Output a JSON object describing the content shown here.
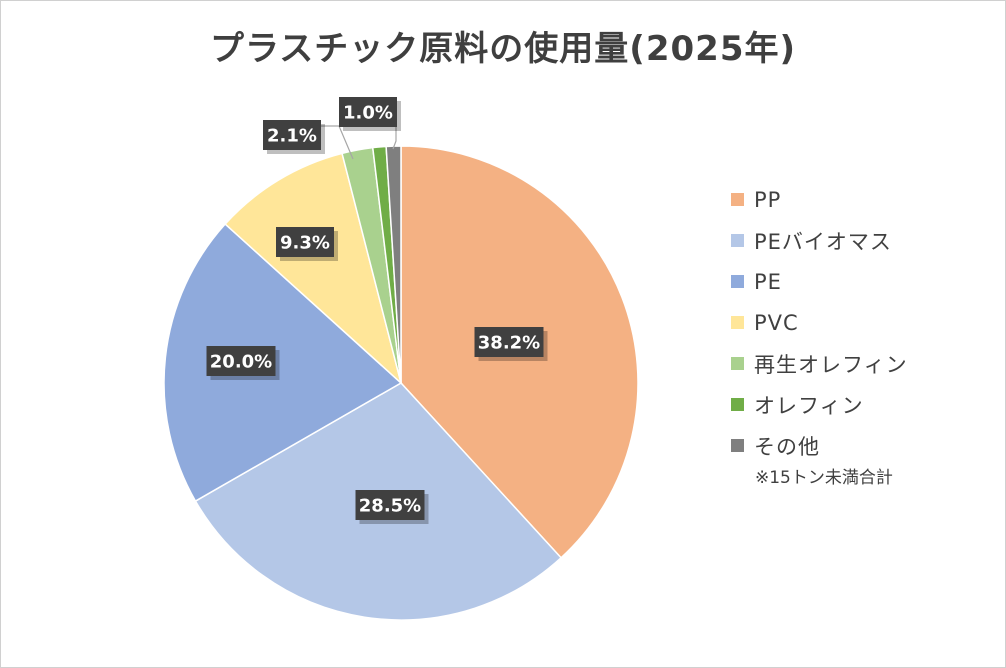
{
  "chart_data": {
    "type": "pie",
    "title": "プラスチック原料の使用量(2025年)",
    "note": "※15トン未満合計",
    "legend_position": "right",
    "slices": [
      {
        "name": "PP",
        "value": 38.2,
        "label": "38.2%",
        "color": "#F4B183"
      },
      {
        "name": "PEバイオマス",
        "value": 28.5,
        "label": "28.5%",
        "color": "#B4C7E7"
      },
      {
        "name": "PE",
        "value": 20.0,
        "label": "20.0%",
        "color": "#8FAADC"
      },
      {
        "name": "PVC",
        "value": 9.3,
        "label": "9.3%",
        "color": "#FFE699"
      },
      {
        "name": "再生オレフィン",
        "value": 2.1,
        "label": "2.1%",
        "color": "#A9D18E"
      },
      {
        "name": "オレフィン",
        "value": 0.9,
        "label": "",
        "color": "#70AD47"
      },
      {
        "name": "その他",
        "value": 1.0,
        "label": "1.0%",
        "color": "#7F7F7F"
      }
    ]
  }
}
